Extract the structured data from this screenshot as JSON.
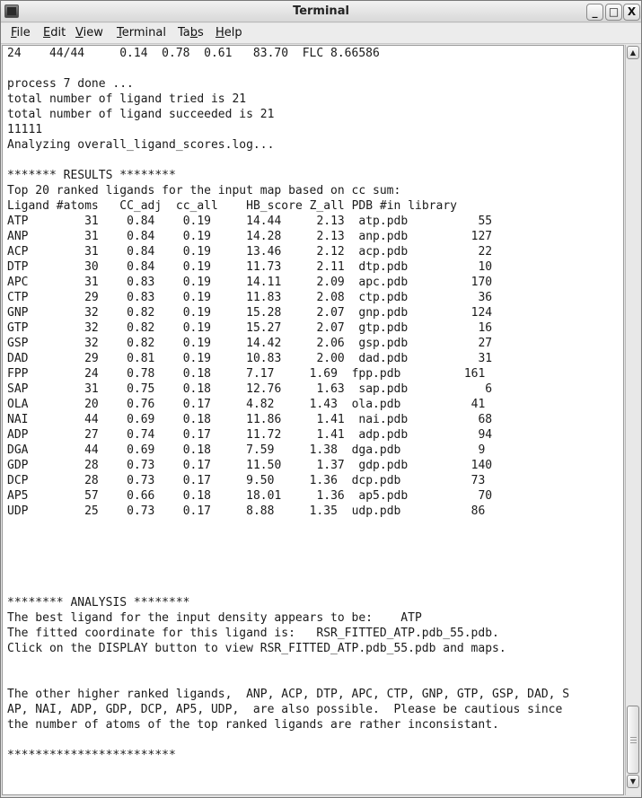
{
  "window": {
    "title": "Terminal"
  },
  "menu": {
    "items": [
      "File",
      "Edit",
      "View",
      "Terminal",
      "Tabs",
      "Help"
    ],
    "mnemonics": [
      "F",
      "E",
      "V",
      "T",
      "b",
      "H"
    ]
  },
  "terminal": {
    "pre_lines": [
      "24    44/44     0.14  0.78  0.61   83.70  FLC 8.66586",
      "",
      "process 7 done ...",
      "total number of ligand tried is 21",
      "total number of ligand succeeded is 21",
      "11111",
      "Analyzing overall_ligand_scores.log...",
      "",
      "******* RESULTS ********",
      "Top 20 ranked ligands for the input map based on cc sum:"
    ],
    "table": {
      "header": [
        "Ligand",
        "#atoms",
        "CC_adj",
        "cc_all",
        "HB_score",
        "Z_all",
        "PDB",
        "#in library"
      ],
      "rows": [
        [
          "ATP",
          "31",
          "0.84",
          "0.19",
          "14.44",
          "2.13",
          "atp.pdb",
          "55"
        ],
        [
          "ANP",
          "31",
          "0.84",
          "0.19",
          "14.28",
          "2.13",
          "anp.pdb",
          "127"
        ],
        [
          "ACP",
          "31",
          "0.84",
          "0.19",
          "13.46",
          "2.12",
          "acp.pdb",
          "22"
        ],
        [
          "DTP",
          "30",
          "0.84",
          "0.19",
          "11.73",
          "2.11",
          "dtp.pdb",
          "10"
        ],
        [
          "APC",
          "31",
          "0.83",
          "0.19",
          "14.11",
          "2.09",
          "apc.pdb",
          "170"
        ],
        [
          "CTP",
          "29",
          "0.83",
          "0.19",
          "11.83",
          "2.08",
          "ctp.pdb",
          "36"
        ],
        [
          "GNP",
          "32",
          "0.82",
          "0.19",
          "15.28",
          "2.07",
          "gnp.pdb",
          "124"
        ],
        [
          "GTP",
          "32",
          "0.82",
          "0.19",
          "15.27",
          "2.07",
          "gtp.pdb",
          "16"
        ],
        [
          "GSP",
          "32",
          "0.82",
          "0.19",
          "14.42",
          "2.06",
          "gsp.pdb",
          "27"
        ],
        [
          "DAD",
          "29",
          "0.81",
          "0.19",
          "10.83",
          "2.00",
          "dad.pdb",
          "31"
        ],
        [
          "FPP",
          "24",
          "0.78",
          "0.18",
          "7.17",
          "1.69",
          "fpp.pdb",
          "161"
        ],
        [
          "SAP",
          "31",
          "0.75",
          "0.18",
          "12.76",
          "1.63",
          "sap.pdb",
          "6"
        ],
        [
          "OLA",
          "20",
          "0.76",
          "0.17",
          "4.82",
          "1.43",
          "ola.pdb",
          "41"
        ],
        [
          "NAI",
          "44",
          "0.69",
          "0.18",
          "11.86",
          "1.41",
          "nai.pdb",
          "68"
        ],
        [
          "ADP",
          "27",
          "0.74",
          "0.17",
          "11.72",
          "1.41",
          "adp.pdb",
          "94"
        ],
        [
          "DGA",
          "44",
          "0.69",
          "0.18",
          "7.59",
          "1.38",
          "dga.pdb",
          "9"
        ],
        [
          "GDP",
          "28",
          "0.73",
          "0.17",
          "11.50",
          "1.37",
          "gdp.pdb",
          "140"
        ],
        [
          "DCP",
          "28",
          "0.73",
          "0.17",
          "9.50",
          "1.36",
          "dcp.pdb",
          "73"
        ],
        [
          "AP5",
          "57",
          "0.66",
          "0.18",
          "18.01",
          "1.36",
          "ap5.pdb",
          "70"
        ],
        [
          "UDP",
          "25",
          "0.73",
          "0.17",
          "8.88",
          "1.35",
          "udp.pdb",
          "86"
        ]
      ]
    },
    "post_lines": [
      "",
      "",
      "",
      "",
      "",
      "******** ANALYSIS ********",
      "The best ligand for the input density appears to be:    ATP",
      "The fitted coordinate for this ligand is:   RSR_FITTED_ATP.pdb_55.pdb.",
      "Click on the DISPLAY button to view RSR_FITTED_ATP.pdb_55.pdb and maps.",
      "",
      "",
      "The other higher ranked ligands,  ANP, ACP, DTP, APC, CTP, GNP, GTP, GSP, DAD, S",
      "AP, NAI, ADP, GDP, DCP, AP5, UDP,  are also possible.  Please be cautious since",
      "the number of atoms of the top ranked ligands are rather inconsistant.",
      "",
      "************************"
    ]
  },
  "scrollbar": {
    "position_fraction": 1.0
  },
  "icons": {
    "app": "terminal-icon",
    "minimize": "minimize-icon",
    "maximize": "maximize-icon",
    "close": "close-icon"
  }
}
